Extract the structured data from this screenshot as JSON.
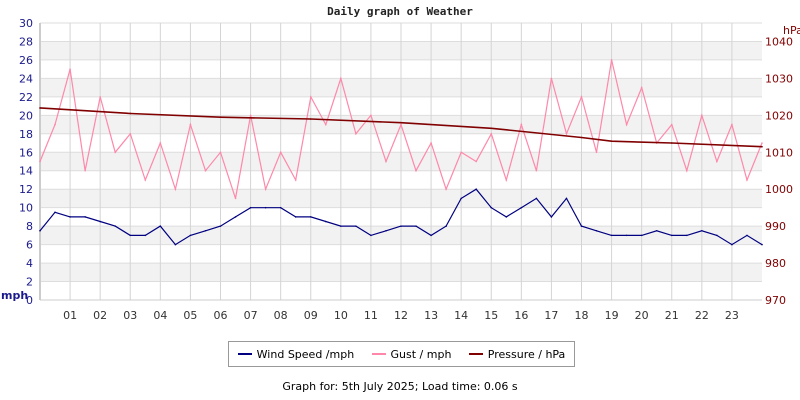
{
  "chart_data": {
    "type": "line",
    "title": "Daily graph of Weather",
    "ylabel": "mph",
    "y2label": "hPa",
    "ylim": [
      0,
      30
    ],
    "y2lim": [
      970,
      1045
    ],
    "yticks": [
      0,
      2,
      4,
      6,
      8,
      10,
      12,
      14,
      16,
      18,
      20,
      22,
      24,
      26,
      28,
      30
    ],
    "y2ticks": [
      970,
      980,
      990,
      1000,
      1010,
      1020,
      1030,
      1040
    ],
    "xticks": [
      "01",
      "02",
      "03",
      "04",
      "05",
      "06",
      "07",
      "08",
      "09",
      "10",
      "11",
      "12",
      "13",
      "14",
      "15",
      "16",
      "17",
      "18",
      "19",
      "20",
      "21",
      "22",
      "23"
    ],
    "xlim": [
      0,
      24
    ],
    "grid": true,
    "legend_position": "bottom",
    "colors": {
      "wind": "#000080",
      "gust": "#ff88aa",
      "pressure": "#800000",
      "left_axis": "#1a1a8c",
      "right_axis": "#800000"
    },
    "series": [
      {
        "name": "Wind Speed /mph",
        "axis": "left",
        "x": [
          0,
          0.5,
          1,
          1.5,
          2,
          2.5,
          3,
          3.5,
          4,
          4.5,
          5,
          5.5,
          6,
          6.5,
          7,
          7.5,
          8,
          8.5,
          9,
          9.5,
          10,
          10.5,
          11,
          11.5,
          12,
          12.5,
          13,
          13.5,
          14,
          14.5,
          15,
          15.5,
          16,
          16.5,
          17,
          17.5,
          18,
          18.5,
          19,
          19.5,
          20,
          20.5,
          21,
          21.5,
          22,
          22.5,
          23,
          23.5,
          24
        ],
        "values": [
          7.5,
          9.5,
          9,
          9,
          8.5,
          8,
          7,
          7,
          8,
          6,
          7,
          7.5,
          8,
          9,
          10,
          10,
          10,
          9,
          9,
          8.5,
          8,
          8,
          7,
          7.5,
          8,
          8,
          7,
          8,
          11,
          12,
          10,
          9,
          10,
          11,
          9,
          11,
          8,
          7.5,
          7,
          7,
          7,
          7.5,
          7,
          7,
          7.5,
          7,
          6,
          7,
          6
        ]
      },
      {
        "name": "Gust / mph",
        "axis": "left",
        "x": [
          0,
          0.5,
          1,
          1.5,
          2,
          2.5,
          3,
          3.5,
          4,
          4.5,
          5,
          5.5,
          6,
          6.5,
          7,
          7.5,
          8,
          8.5,
          9,
          9.5,
          10,
          10.5,
          11,
          11.5,
          12,
          12.5,
          13,
          13.5,
          14,
          14.5,
          15,
          15.5,
          16,
          16.5,
          17,
          17.5,
          18,
          18.5,
          19,
          19.5,
          20,
          20.5,
          21,
          21.5,
          22,
          22.5,
          23,
          23.5,
          24
        ],
        "values": [
          15,
          19,
          25,
          14,
          22,
          16,
          18,
          13,
          17,
          12,
          19,
          14,
          16,
          11,
          20,
          12,
          16,
          13,
          22,
          19,
          24,
          18,
          20,
          15,
          19,
          14,
          17,
          12,
          16,
          15,
          18,
          13,
          19,
          14,
          24,
          18,
          22,
          16,
          26,
          19,
          23,
          17,
          19,
          14,
          20,
          15,
          19,
          13,
          17
        ]
      },
      {
        "name": "Pressure / hPa",
        "axis": "right",
        "x": [
          0,
          3,
          6,
          9,
          12,
          15,
          18,
          19,
          21,
          24
        ],
        "values": [
          1022,
          1020.5,
          1019.5,
          1019,
          1018,
          1016.5,
          1014,
          1013,
          1012.5,
          1011.5
        ]
      }
    ]
  },
  "footer": "Graph for: 5th July 2025; Load time: 0.06 s"
}
